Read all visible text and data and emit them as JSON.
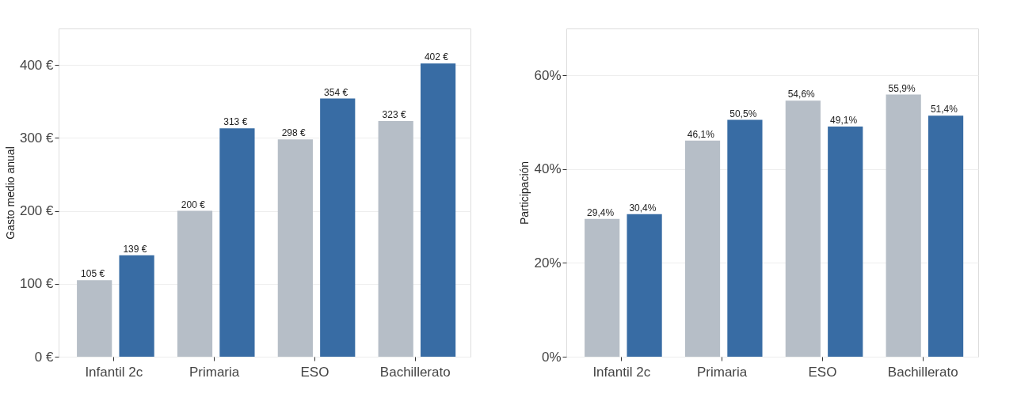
{
  "chart_data": [
    {
      "type": "bar",
      "ylabel": "Gasto medio anual",
      "categories": [
        "Infantil 2c",
        "Primaria",
        "ESO",
        "Bachillerato"
      ],
      "series": [
        {
          "color": "#b6bec7",
          "values": [
            105,
            200,
            298,
            323
          ],
          "value_labels": [
            "105 €",
            "200 €",
            "298 €",
            "323 €"
          ]
        },
        {
          "color": "#386ca4",
          "values": [
            139,
            313,
            354,
            402
          ],
          "value_labels": [
            "139 €",
            "313 €",
            "354 €",
            "402 €"
          ]
        }
      ],
      "ylim": [
        0,
        450
      ],
      "yticks": [
        {
          "value": 0,
          "label": "0 €"
        },
        {
          "value": 100,
          "label": "100 €"
        },
        {
          "value": 200,
          "label": "200 €"
        },
        {
          "value": 300,
          "label": "300 €"
        },
        {
          "value": 400,
          "label": "400 €"
        }
      ],
      "grid": true,
      "legend": false
    },
    {
      "type": "bar",
      "ylabel": "Participación",
      "categories": [
        "Infantil 2c",
        "Primaria",
        "ESO",
        "Bachillerato"
      ],
      "series": [
        {
          "color": "#b6bec7",
          "values": [
            29.4,
            46.1,
            54.6,
            55.9
          ],
          "value_labels": [
            "29,4%",
            "46,1%",
            "54,6%",
            "55,9%"
          ]
        },
        {
          "color": "#386ca4",
          "values": [
            30.4,
            50.5,
            49.1,
            51.4
          ],
          "value_labels": [
            "30,4%",
            "50,5%",
            "49,1%",
            "51,4%"
          ]
        }
      ],
      "ylim": [
        0,
        70
      ],
      "yticks": [
        {
          "value": 0,
          "label": "0%"
        },
        {
          "value": 20,
          "label": "20%"
        },
        {
          "value": 40,
          "label": "40%"
        },
        {
          "value": 60,
          "label": "60%"
        }
      ],
      "grid": true,
      "legend": false
    }
  ]
}
